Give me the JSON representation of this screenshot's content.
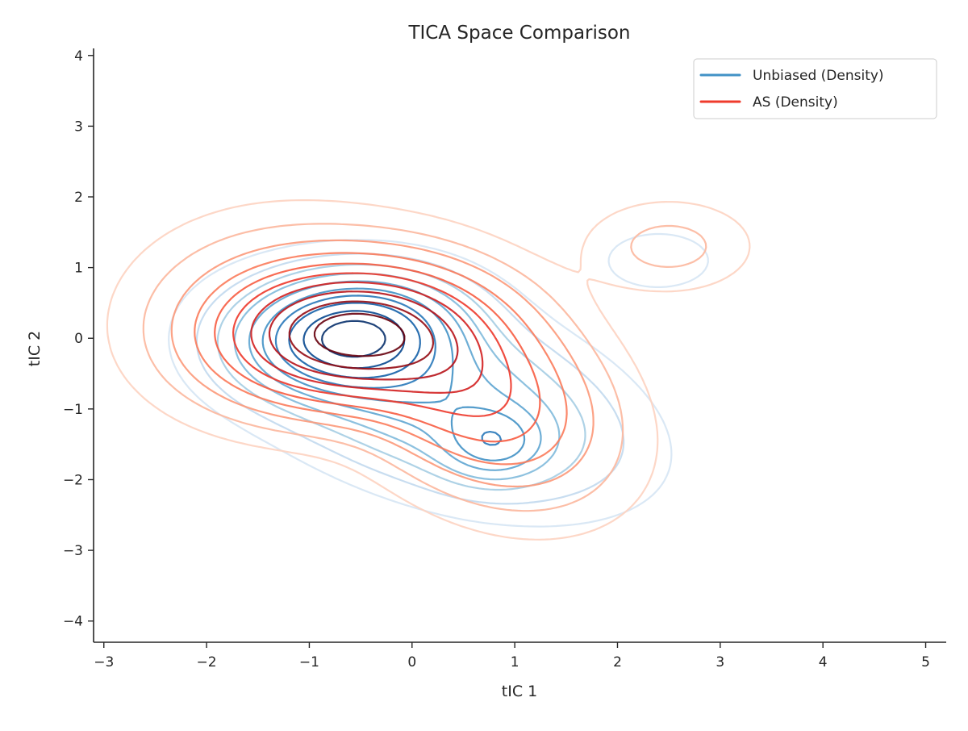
{
  "chart_data": {
    "type": "contour",
    "title": "TICA Space Comparison",
    "xlabel": "tIC 1",
    "ylabel": "tIC 2",
    "xlim": [
      -3.1,
      5.2
    ],
    "ylim": [
      -4.3,
      4.1
    ],
    "xticks": [
      -3,
      -2,
      -1,
      0,
      1,
      2,
      3,
      4,
      5
    ],
    "yticks": [
      -4,
      -3,
      -2,
      -1,
      0,
      1,
      2,
      3,
      4
    ],
    "xtick_labels": [
      "−3",
      "−2",
      "−1",
      "0",
      "1",
      "2",
      "3",
      "4",
      "5"
    ],
    "ytick_labels": [
      "−4",
      "−3",
      "−2",
      "−1",
      "0",
      "1",
      "2",
      "3",
      "4"
    ],
    "grid": false,
    "legend_position": "top-right",
    "series": [
      {
        "name": "Unbiased (Density)",
        "legend_color": "#4292c6",
        "colormap": "Blues",
        "levels": 10,
        "components": [
          {
            "weight": 1.0,
            "mx": -0.6,
            "my": 0.05,
            "sx": 0.6,
            "sy": 0.48,
            "rho": 0.1
          },
          {
            "weight": 0.33,
            "mx": 0.8,
            "my": -1.5,
            "sx": 0.32,
            "sy": 0.32,
            "rho": 0.0
          },
          {
            "weight": 0.42,
            "mx": 0.2,
            "my": -0.8,
            "sx": 1.0,
            "sy": 0.8,
            "rho": -0.45
          },
          {
            "weight": 0.05,
            "mx": 2.4,
            "my": 1.1,
            "sx": 0.45,
            "sy": 0.35,
            "rho": 0.0
          }
        ]
      },
      {
        "name": "AS (Density)",
        "legend_color": "#ef3b2c",
        "colormap": "Reds",
        "levels": 10,
        "components": [
          {
            "weight": 1.0,
            "mx": -0.6,
            "my": 0.05,
            "sx": 0.75,
            "sy": 0.58,
            "rho": 0.05
          },
          {
            "weight": 0.5,
            "mx": 0.6,
            "my": -0.7,
            "sx": 0.75,
            "sy": 0.9,
            "rho": -0.35
          },
          {
            "weight": 0.1,
            "mx": 2.5,
            "my": 1.3,
            "sx": 0.5,
            "sy": 0.4,
            "rho": 0.0
          },
          {
            "weight": 0.2,
            "mx": -1.3,
            "my": 0.3,
            "sx": 0.8,
            "sy": 0.8,
            "rho": 0.0
          }
        ]
      }
    ]
  }
}
